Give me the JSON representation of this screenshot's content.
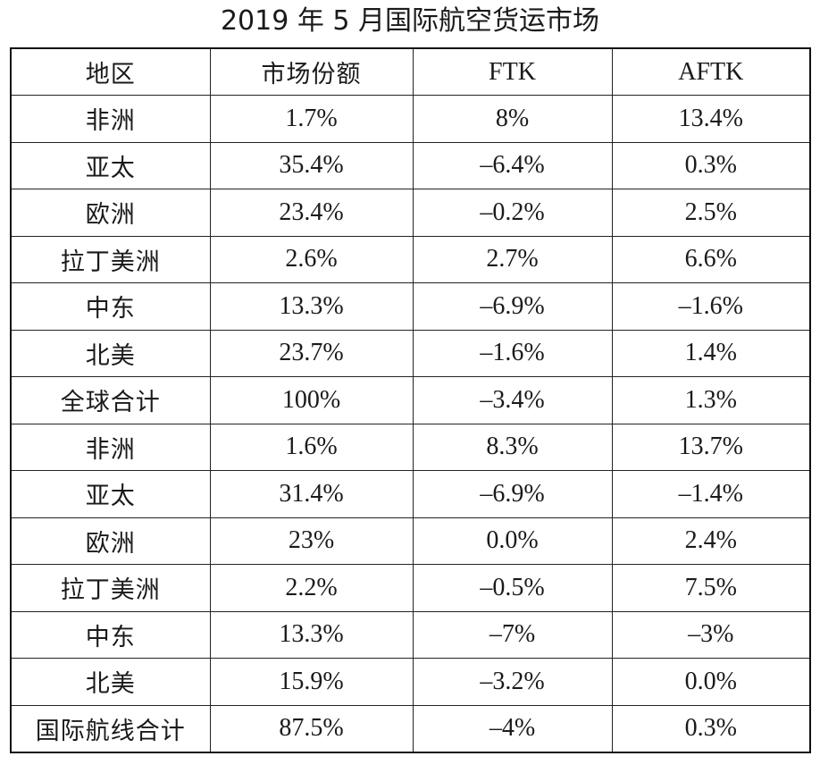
{
  "title": "2019 年 5 月国际航空货运市场",
  "table": {
    "headers": [
      "地区",
      "市场份额",
      "FTK",
      "AFTK"
    ],
    "rows": [
      [
        "非洲",
        "1.7%",
        "8%",
        "13.4%"
      ],
      [
        "亚太",
        "35.4%",
        "–6.4%",
        "0.3%"
      ],
      [
        "欧洲",
        "23.4%",
        "–0.2%",
        "2.5%"
      ],
      [
        "拉丁美洲",
        "2.6%",
        "2.7%",
        "6.6%"
      ],
      [
        "中东",
        "13.3%",
        "–6.9%",
        "–1.6%"
      ],
      [
        "北美",
        "23.7%",
        "–1.6%",
        "1.4%"
      ],
      [
        "全球合计",
        "100%",
        "–3.4%",
        "1.3%"
      ],
      [
        "非洲",
        "1.6%",
        "8.3%",
        "13.7%"
      ],
      [
        "亚太",
        "31.4%",
        "–6.9%",
        "–1.4%"
      ],
      [
        "欧洲",
        "23%",
        "0.0%",
        "2.4%"
      ],
      [
        "拉丁美洲",
        "2.2%",
        "–0.5%",
        "7.5%"
      ],
      [
        "中东",
        "13.3%",
        "–7%",
        "–3%"
      ],
      [
        "北美",
        "15.9%",
        "–3.2%",
        "0.0%"
      ],
      [
        "国际航线合计",
        "87.5%",
        "–4%",
        "0.3%"
      ]
    ]
  }
}
